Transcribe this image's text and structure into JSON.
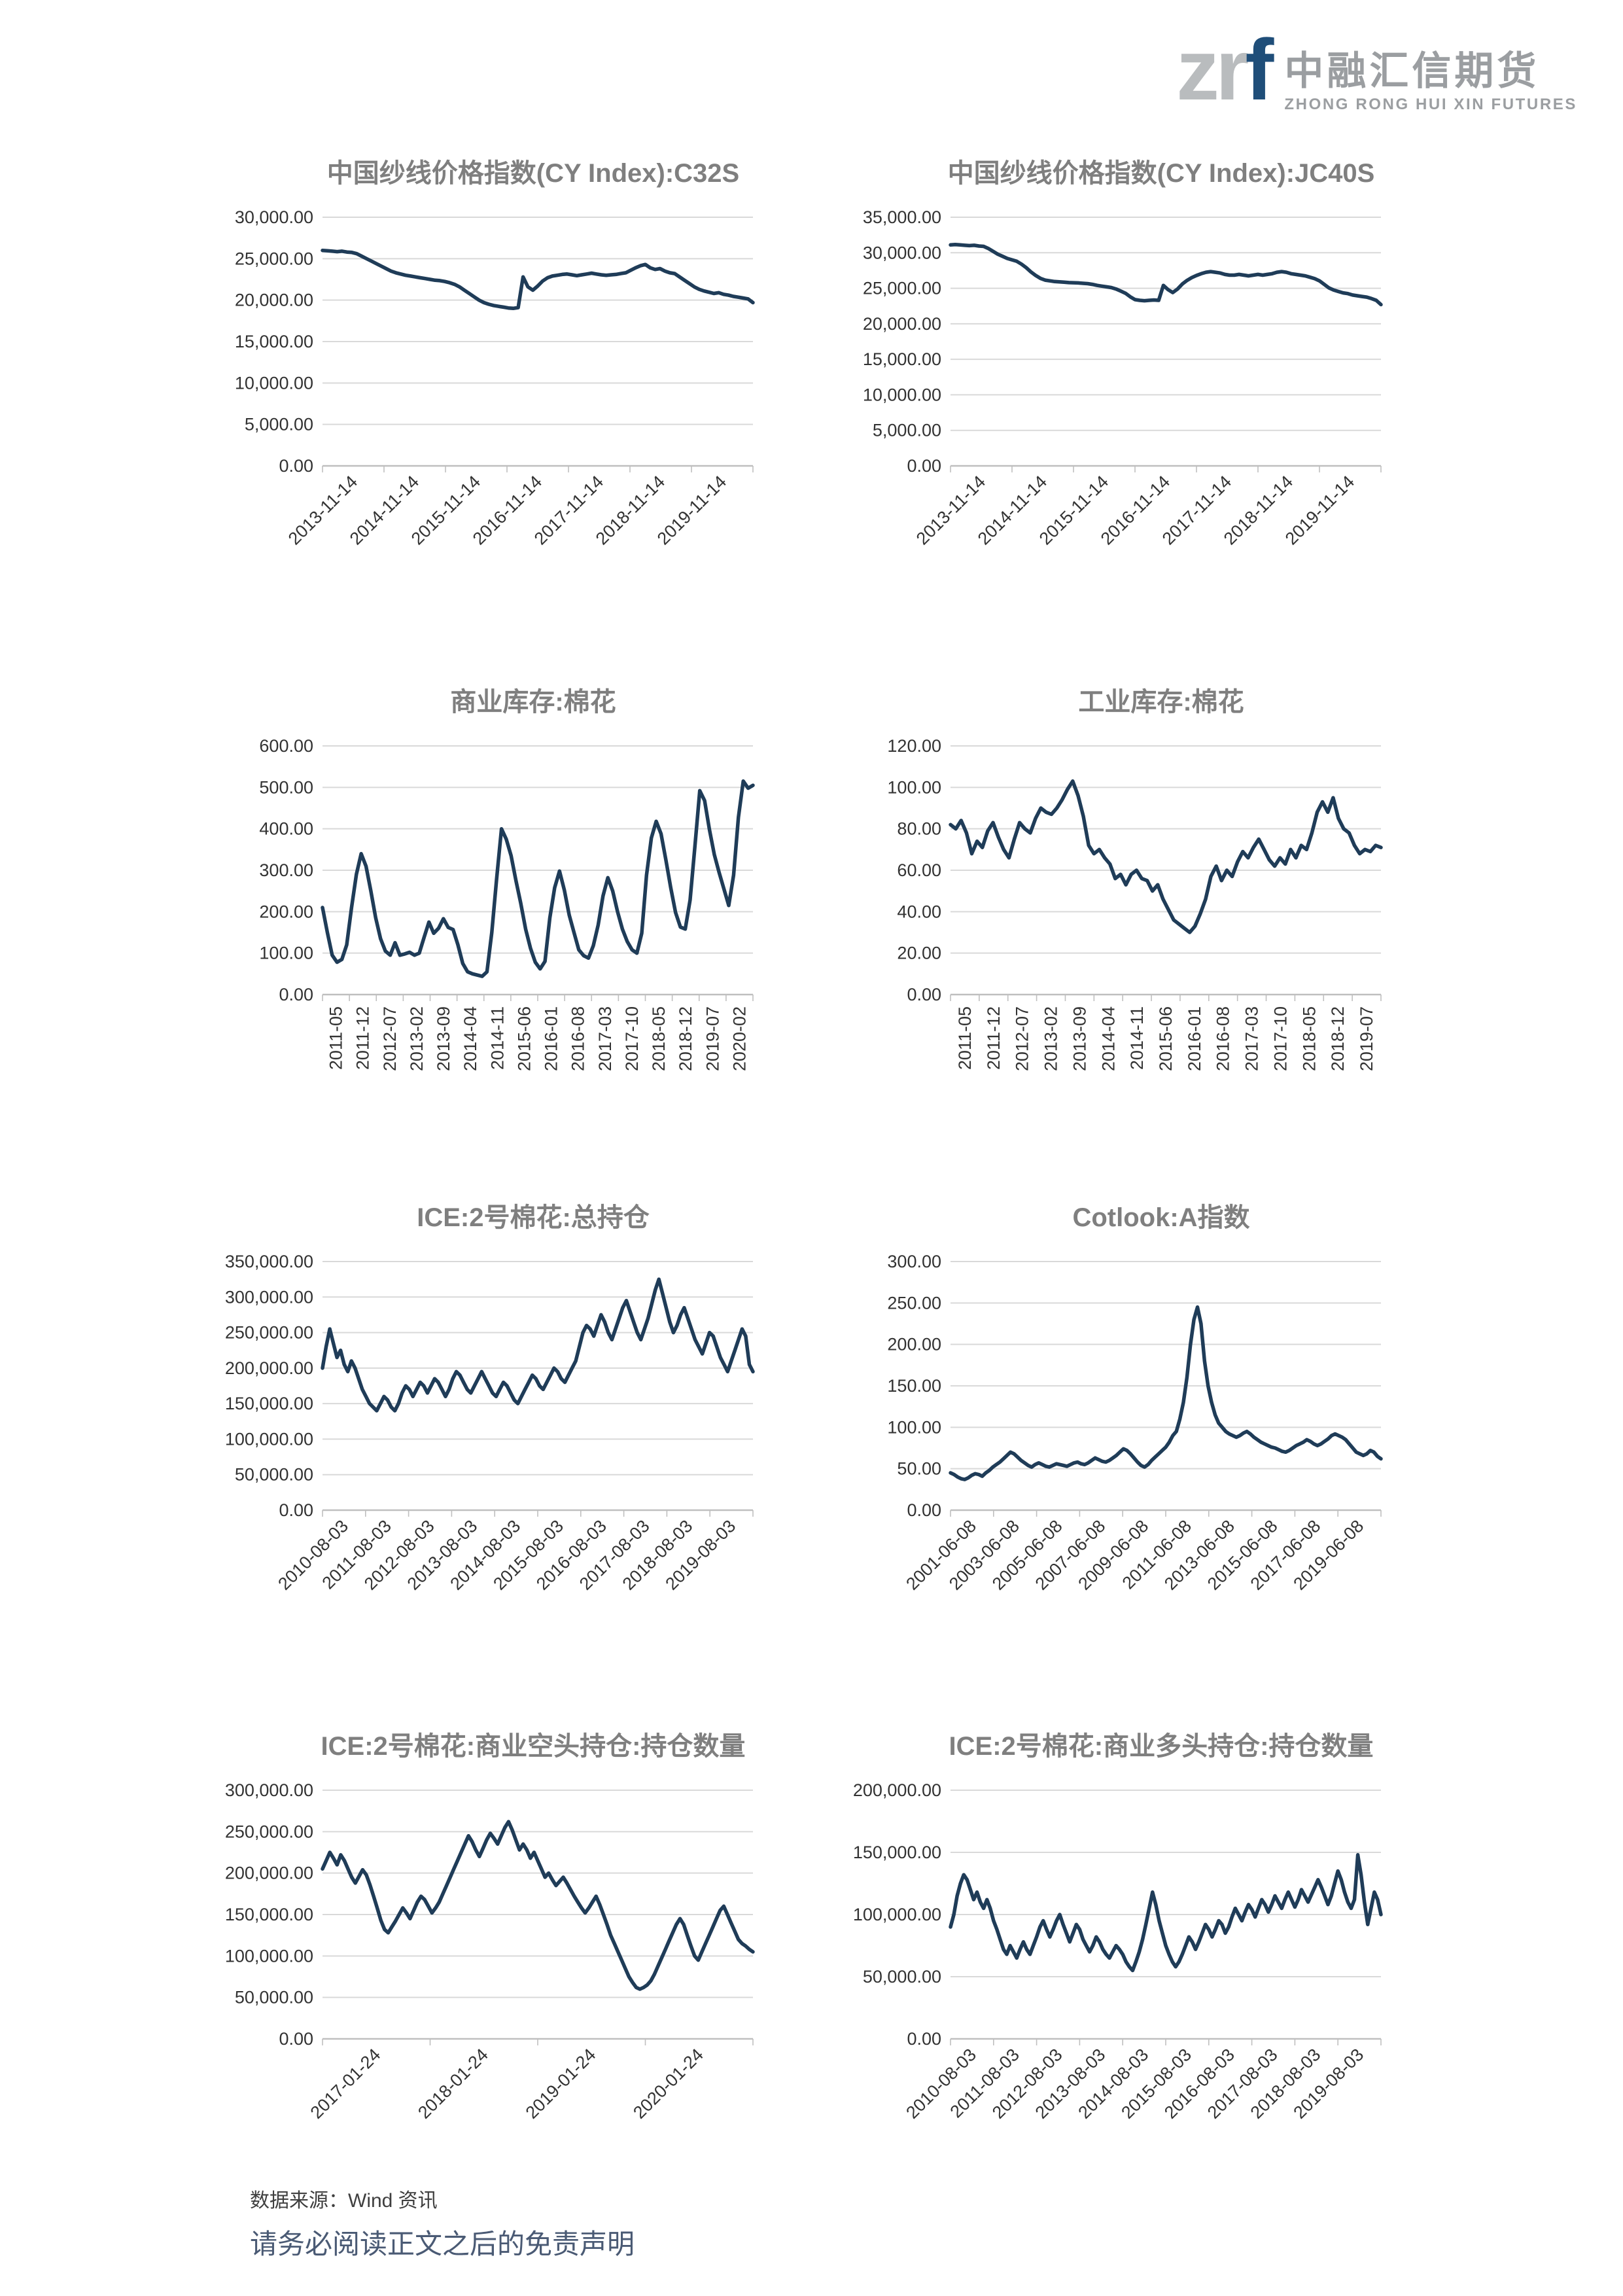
{
  "logo": {
    "zr": "zr",
    "f": "f",
    "cn": "中融汇信期货",
    "en": "ZHONG RONG HUI XIN FUTURES",
    "zr_color": "#b9bcbe",
    "f_color": "#1f4e79"
  },
  "footer": {
    "source_label": "数据来源：Wind 资讯",
    "disclaimer": "请务必阅读正文之后的免责声明"
  },
  "style": {
    "line_color": "#1f3c58",
    "grid_color": "#d9d9d9",
    "axis_color": "#bfbfbf",
    "title_color": "#7f7f7f",
    "tick_label_color": "#333333"
  },
  "chart_data": [
    {
      "type": "line",
      "title": "中国纱线价格指数(CY Index):C32S",
      "ylim": [
        0,
        30000
      ],
      "ystep": 5000,
      "grid": true,
      "legend": "none",
      "x_label_style": "diagonal",
      "x_tick_labels": [
        "2013-11-14",
        "2014-11-14",
        "2015-11-14",
        "2016-11-14",
        "2017-11-14",
        "2018-11-14",
        "2019-11-14"
      ],
      "values": [
        26000,
        25950,
        25900,
        25850,
        25900,
        25800,
        25750,
        25600,
        25300,
        25000,
        24700,
        24400,
        24100,
        23800,
        23500,
        23300,
        23150,
        23000,
        22900,
        22800,
        22700,
        22600,
        22500,
        22400,
        22350,
        22250,
        22100,
        21900,
        21600,
        21200,
        20800,
        20400,
        20000,
        19700,
        19500,
        19350,
        19250,
        19150,
        19050,
        19000,
        19100,
        22800,
        21600,
        21200,
        21700,
        22300,
        22700,
        22900,
        23000,
        23100,
        23150,
        23050,
        22950,
        23050,
        23150,
        23250,
        23150,
        23050,
        23000,
        23050,
        23100,
        23200,
        23300,
        23600,
        23900,
        24150,
        24300,
        23900,
        23700,
        23800,
        23500,
        23300,
        23200,
        22800,
        22400,
        22000,
        21600,
        21300,
        21100,
        20950,
        20800,
        20900,
        20700,
        20600,
        20450,
        20350,
        20250,
        20150,
        19700
      ]
    },
    {
      "type": "line",
      "title": "中国纱线价格指数(CY Index):JC40S",
      "ylim": [
        0,
        35000
      ],
      "ystep": 5000,
      "grid": true,
      "legend": "none",
      "x_label_style": "diagonal",
      "x_tick_labels": [
        "2013-11-14",
        "2014-11-14",
        "2015-11-14",
        "2016-11-14",
        "2017-11-14",
        "2018-11-14",
        "2019-11-14"
      ],
      "values": [
        31100,
        31150,
        31100,
        31050,
        31000,
        31050,
        30950,
        30900,
        30600,
        30200,
        29800,
        29500,
        29200,
        29000,
        28800,
        28400,
        27900,
        27300,
        26800,
        26400,
        26150,
        26050,
        25950,
        25900,
        25850,
        25800,
        25780,
        25750,
        25700,
        25650,
        25550,
        25400,
        25300,
        25200,
        25100,
        24900,
        24600,
        24300,
        23800,
        23400,
        23300,
        23250,
        23300,
        23350,
        23300,
        25400,
        24800,
        24400,
        24900,
        25600,
        26100,
        26500,
        26800,
        27050,
        27250,
        27350,
        27250,
        27150,
        26950,
        26850,
        26850,
        26950,
        26850,
        26750,
        26850,
        26950,
        26850,
        26950,
        27050,
        27250,
        27350,
        27250,
        27050,
        26950,
        26850,
        26750,
        26550,
        26350,
        26050,
        25550,
        25050,
        24750,
        24550,
        24350,
        24250,
        24050,
        23950,
        23850,
        23750,
        23550,
        23300,
        22700
      ]
    },
    {
      "type": "line",
      "title": "商业库存:棉花",
      "ylim": [
        0,
        600
      ],
      "ystep": 100,
      "grid": true,
      "legend": "none",
      "x_label_style": "vertical",
      "x_tick_labels": [
        "2011-05",
        "2011-12",
        "2012-07",
        "2013-02",
        "2013-09",
        "2014-04",
        "2014-11",
        "2015-06",
        "2016-01",
        "2016-08",
        "2017-03",
        "2017-10",
        "2018-05",
        "2018-12",
        "2019-07",
        "2020-02"
      ],
      "values": [
        210,
        150,
        95,
        78,
        85,
        120,
        210,
        290,
        340,
        310,
        250,
        185,
        135,
        105,
        95,
        125,
        95,
        98,
        102,
        95,
        100,
        138,
        175,
        148,
        160,
        183,
        162,
        157,
        120,
        75,
        55,
        50,
        47,
        44,
        55,
        150,
        280,
        400,
        375,
        335,
        275,
        220,
        158,
        112,
        78,
        62,
        80,
        185,
        258,
        298,
        252,
        192,
        150,
        108,
        94,
        88,
        118,
        168,
        238,
        282,
        250,
        200,
        158,
        128,
        108,
        100,
        148,
        288,
        378,
        418,
        388,
        325,
        258,
        198,
        163,
        158,
        228,
        358,
        492,
        468,
        398,
        338,
        295,
        255,
        215,
        288,
        428,
        515,
        498,
        505
      ]
    },
    {
      "type": "line",
      "title": "工业库存:棉花",
      "ylim": [
        0,
        120
      ],
      "ystep": 20,
      "grid": true,
      "legend": "none",
      "x_label_style": "vertical",
      "x_tick_labels": [
        "2011-05",
        "2011-12",
        "2012-07",
        "2013-02",
        "2013-09",
        "2014-04",
        "2014-11",
        "2015-06",
        "2016-01",
        "2016-08",
        "2017-03",
        "2017-10",
        "2018-05",
        "2018-12",
        "2019-07"
      ],
      "values": [
        82,
        80,
        84,
        78,
        68,
        74,
        71,
        79,
        83,
        76,
        70,
        66,
        75,
        83,
        80,
        78,
        85,
        90,
        88,
        87,
        90,
        94,
        99,
        103,
        96,
        86,
        72,
        68,
        70,
        66,
        63,
        56,
        58,
        53,
        58,
        60,
        56,
        55,
        50,
        53,
        46,
        41,
        36,
        34,
        32,
        30,
        33,
        39,
        46,
        57,
        62,
        55,
        60,
        57,
        64,
        69,
        66,
        71,
        75,
        70,
        65,
        62,
        66,
        63,
        70,
        66,
        72,
        70,
        78,
        88,
        93,
        88,
        95,
        85,
        80,
        78,
        72,
        68,
        70,
        69,
        72,
        71
      ]
    },
    {
      "type": "line",
      "title": "ICE:2号棉花:总持仓",
      "ylim": [
        0,
        350000
      ],
      "ystep": 50000,
      "grid": true,
      "legend": "none",
      "x_label_style": "diagonal",
      "x_tick_labels": [
        "2010-08-03",
        "2011-08-03",
        "2012-08-03",
        "2013-08-03",
        "2014-08-03",
        "2015-08-03",
        "2016-08-03",
        "2017-08-03",
        "2018-08-03",
        "2019-08-03"
      ],
      "values": [
        200000,
        230000,
        255000,
        235000,
        215000,
        225000,
        205000,
        195000,
        210000,
        200000,
        185000,
        170000,
        160000,
        150000,
        145000,
        140000,
        150000,
        160000,
        155000,
        145000,
        140000,
        150000,
        165000,
        175000,
        170000,
        160000,
        170000,
        180000,
        175000,
        165000,
        175000,
        185000,
        180000,
        170000,
        160000,
        170000,
        185000,
        195000,
        190000,
        180000,
        170000,
        165000,
        175000,
        185000,
        195000,
        185000,
        175000,
        165000,
        160000,
        170000,
        180000,
        175000,
        165000,
        155000,
        150000,
        160000,
        170000,
        180000,
        190000,
        185000,
        175000,
        170000,
        180000,
        190000,
        200000,
        195000,
        185000,
        180000,
        190000,
        200000,
        210000,
        230000,
        250000,
        260000,
        255000,
        245000,
        260000,
        275000,
        265000,
        250000,
        240000,
        255000,
        270000,
        285000,
        295000,
        280000,
        265000,
        250000,
        240000,
        255000,
        270000,
        290000,
        310000,
        325000,
        305000,
        285000,
        265000,
        250000,
        260000,
        275000,
        285000,
        270000,
        255000,
        240000,
        230000,
        220000,
        235000,
        250000,
        245000,
        230000,
        215000,
        205000,
        195000,
        210000,
        225000,
        240000,
        255000,
        245000,
        205000,
        195000
      ]
    },
    {
      "type": "line",
      "title": "Cotlook:A指数",
      "ylim": [
        0,
        300
      ],
      "ystep": 50,
      "grid": true,
      "legend": "none",
      "x_label_style": "diagonal",
      "x_tick_labels": [
        "2001-06-08",
        "2003-06-08",
        "2005-06-08",
        "2007-06-08",
        "2009-06-08",
        "2011-06-08",
        "2013-06-08",
        "2015-06-08",
        "2017-06-08",
        "2019-06-08"
      ],
      "values": [
        45,
        43,
        40,
        38,
        37,
        39,
        42,
        44,
        43,
        41,
        45,
        48,
        52,
        55,
        58,
        62,
        66,
        70,
        68,
        64,
        60,
        57,
        54,
        52,
        55,
        57,
        55,
        53,
        52,
        54,
        56,
        55,
        54,
        53,
        55,
        57,
        58,
        56,
        55,
        57,
        60,
        63,
        61,
        59,
        58,
        60,
        63,
        66,
        70,
        74,
        72,
        68,
        63,
        58,
        54,
        52,
        55,
        60,
        64,
        68,
        72,
        76,
        82,
        90,
        95,
        110,
        130,
        160,
        200,
        230,
        245,
        225,
        180,
        150,
        130,
        115,
        105,
        100,
        95,
        92,
        90,
        88,
        90,
        93,
        95,
        92,
        88,
        85,
        82,
        80,
        78,
        76,
        75,
        73,
        71,
        70,
        72,
        75,
        78,
        80,
        82,
        85,
        83,
        80,
        78,
        80,
        83,
        86,
        90,
        92,
        90,
        88,
        85,
        80,
        75,
        70,
        68,
        66,
        68,
        72,
        70,
        65,
        62
      ]
    },
    {
      "type": "line",
      "title": "ICE:2号棉花:商业空头持仓:持仓数量",
      "ylim": [
        0,
        300000
      ],
      "ystep": 50000,
      "grid": true,
      "legend": "none",
      "x_label_style": "diagonal",
      "x_tick_labels": [
        "2017-01-24",
        "2018-01-24",
        "2019-01-24",
        "2020-01-24"
      ],
      "values": [
        205000,
        215000,
        225000,
        218000,
        210000,
        222000,
        215000,
        205000,
        195000,
        188000,
        196000,
        204000,
        198000,
        186000,
        172000,
        158000,
        143000,
        132000,
        128000,
        135000,
        142000,
        150000,
        158000,
        152000,
        145000,
        155000,
        165000,
        172000,
        168000,
        160000,
        152000,
        158000,
        165000,
        175000,
        185000,
        195000,
        205000,
        215000,
        225000,
        235000,
        245000,
        238000,
        228000,
        220000,
        230000,
        240000,
        248000,
        242000,
        235000,
        245000,
        255000,
        262000,
        252000,
        240000,
        228000,
        235000,
        228000,
        218000,
        225000,
        215000,
        205000,
        195000,
        200000,
        192000,
        185000,
        190000,
        195000,
        188000,
        180000,
        172000,
        165000,
        158000,
        152000,
        158000,
        165000,
        172000,
        162000,
        150000,
        138000,
        125000,
        115000,
        105000,
        95000,
        85000,
        75000,
        68000,
        62000,
        60000,
        62000,
        65000,
        70000,
        78000,
        88000,
        98000,
        108000,
        118000,
        128000,
        138000,
        145000,
        138000,
        125000,
        112000,
        100000,
        95000,
        105000,
        115000,
        125000,
        135000,
        145000,
        155000,
        160000,
        150000,
        140000,
        130000,
        120000,
        115000,
        112000,
        108000,
        105000
      ]
    },
    {
      "type": "line",
      "title": "ICE:2号棉花:商业多头持仓:持仓数量",
      "ylim": [
        0,
        200000
      ],
      "ystep": 50000,
      "grid": true,
      "legend": "none",
      "x_label_style": "diagonal",
      "x_tick_labels": [
        "2010-08-03",
        "2011-08-03",
        "2012-08-03",
        "2013-08-03",
        "2014-08-03",
        "2015-08-03",
        "2016-08-03",
        "2017-08-03",
        "2018-08-03",
        "2019-08-03"
      ],
      "values": [
        90000,
        100000,
        115000,
        125000,
        132000,
        128000,
        120000,
        112000,
        118000,
        110000,
        105000,
        112000,
        105000,
        95000,
        88000,
        80000,
        72000,
        68000,
        75000,
        70000,
        65000,
        72000,
        78000,
        72000,
        68000,
        75000,
        82000,
        90000,
        95000,
        88000,
        82000,
        88000,
        95000,
        100000,
        92000,
        85000,
        78000,
        85000,
        92000,
        88000,
        80000,
        75000,
        70000,
        75000,
        82000,
        78000,
        72000,
        68000,
        65000,
        70000,
        75000,
        72000,
        68000,
        62000,
        58000,
        55000,
        62000,
        70000,
        80000,
        92000,
        105000,
        118000,
        108000,
        95000,
        85000,
        75000,
        68000,
        62000,
        58000,
        62000,
        68000,
        75000,
        82000,
        78000,
        72000,
        78000,
        85000,
        92000,
        88000,
        82000,
        88000,
        95000,
        92000,
        85000,
        90000,
        98000,
        105000,
        100000,
        95000,
        102000,
        108000,
        104000,
        98000,
        105000,
        112000,
        108000,
        102000,
        108000,
        115000,
        110000,
        105000,
        112000,
        118000,
        112000,
        106000,
        112000,
        120000,
        115000,
        110000,
        116000,
        122000,
        128000,
        122000,
        115000,
        108000,
        115000,
        125000,
        135000,
        128000,
        118000,
        110000,
        105000,
        112000,
        148000,
        132000,
        110000,
        92000,
        105000,
        118000,
        112000,
        100000
      ]
    }
  ]
}
